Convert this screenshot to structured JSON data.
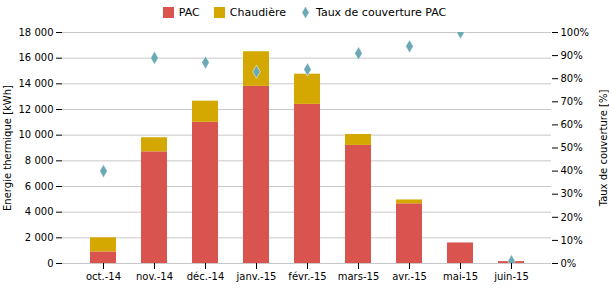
{
  "chart_data": {
    "type": "bar",
    "stacked": true,
    "categories": [
      "oct.-14",
      "nov.-14",
      "déc.-14",
      "janv.-15",
      "févr.-15",
      "mars-15",
      "avr.-15",
      "mai-15",
      "juin-15"
    ],
    "series": [
      {
        "name": "PAC",
        "color": "#d9534f",
        "values": [
          900,
          8700,
          11000,
          13800,
          12400,
          9200,
          4650,
          1600,
          150
        ]
      },
      {
        "name": "Chaudière",
        "color": "#d4a800",
        "values": [
          1100,
          1100,
          1650,
          2700,
          2350,
          850,
          300,
          0,
          0
        ]
      },
      {
        "name": "Taux de couverture PAC",
        "color": "#6baab5",
        "type": "scatter",
        "marker": "diamond",
        "axis": "y2",
        "values": [
          40,
          89,
          87,
          83,
          84,
          91,
          94,
          100,
          1
        ]
      }
    ],
    "ylabel": "Energie thermique [kWh]",
    "y2label": "Taux de couverture [%]",
    "ylim": [
      0,
      18000
    ],
    "yticks": [
      0,
      {
        "value": 2000,
        "label": "2 000"
      },
      {
        "value": 4000,
        "label": "4 000"
      },
      {
        "value": 6000,
        "label": "6 000"
      },
      {
        "value": 8000,
        "label": "8 000"
      },
      {
        "value": 10000,
        "label": "10 000"
      },
      {
        "value": 12000,
        "label": "12 000"
      },
      {
        "value": 14000,
        "label": "14 000"
      },
      {
        "value": 16000,
        "label": "16 000"
      },
      {
        "value": 18000,
        "label": "18 000"
      }
    ],
    "y2lim": [
      0,
      100
    ],
    "y2ticks": [
      {
        "value": 0,
        "label": "0%"
      },
      {
        "value": 10,
        "label": "10%"
      },
      {
        "value": 20,
        "label": "20%"
      },
      {
        "value": 30,
        "label": "30%"
      },
      {
        "value": 40,
        "label": "40%"
      },
      {
        "value": 50,
        "label": "50%"
      },
      {
        "value": 60,
        "label": "60%"
      },
      {
        "value": 70,
        "label": "70%"
      },
      {
        "value": 80,
        "label": "80%"
      },
      {
        "value": 90,
        "label": "90%"
      },
      {
        "value": 100,
        "label": "100%"
      }
    ],
    "grid": true,
    "legend": "top"
  }
}
